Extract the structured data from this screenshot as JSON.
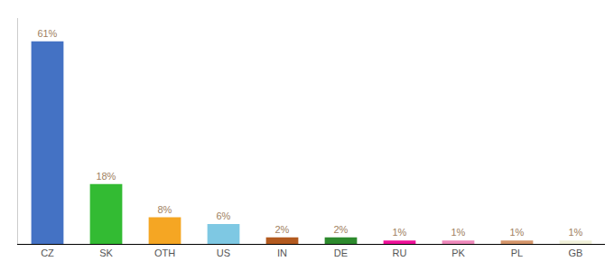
{
  "chart_data": {
    "type": "bar",
    "categories": [
      "CZ",
      "SK",
      "OTH",
      "US",
      "IN",
      "DE",
      "RU",
      "PK",
      "PL",
      "GB"
    ],
    "values": [
      61,
      18,
      8,
      6,
      2,
      2,
      1,
      1,
      1,
      1
    ],
    "value_labels": [
      "61%",
      "18%",
      "8%",
      "6%",
      "2%",
      "2%",
      "1%",
      "1%",
      "1%",
      "1%"
    ],
    "colors": [
      "#4472c4",
      "#33bb33",
      "#f5a623",
      "#7ec8e3",
      "#b35a1f",
      "#2d8a2d",
      "#ee1199",
      "#ee88bb",
      "#d4956a",
      "#f0f0d8"
    ],
    "ylim": [
      0,
      68
    ],
    "data_labels": true,
    "tick_labels": "x",
    "grid": false
  }
}
